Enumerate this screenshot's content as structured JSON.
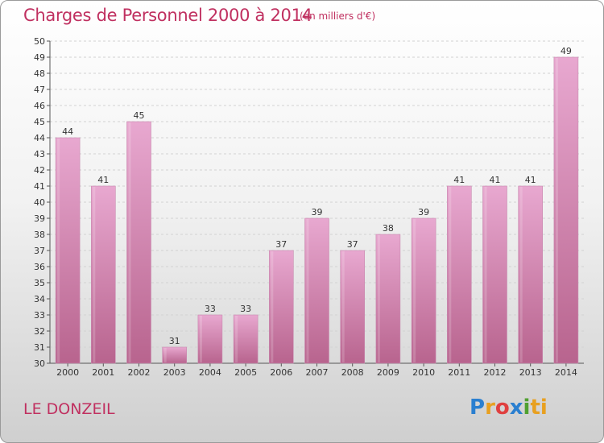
{
  "header": {
    "title": "Charges de Personnel 2000 à 2014",
    "subtitle": "(en milliers d'€)"
  },
  "footer": {
    "place": "LE DONZEIL",
    "logo": [
      "P",
      "r",
      "o",
      "x",
      "i",
      "ti"
    ]
  },
  "colors": {
    "bar_top": "#e8a8d0",
    "bar_bottom": "#b8648e",
    "accent": "#c03060"
  },
  "chart_data": {
    "type": "bar",
    "title": "Charges de Personnel 2000 à 2014",
    "subtitle": "(en milliers d'€)",
    "categories": [
      "2000",
      "2001",
      "2002",
      "2003",
      "2004",
      "2005",
      "2006",
      "2007",
      "2008",
      "2009",
      "2010",
      "2011",
      "2012",
      "2013",
      "2014"
    ],
    "values": [
      44,
      41,
      45,
      31,
      33,
      33,
      37,
      39,
      37,
      38,
      39,
      41,
      41,
      41,
      49
    ],
    "ylim": [
      30,
      50
    ],
    "yticks": [
      30,
      31,
      32,
      33,
      34,
      35,
      36,
      37,
      38,
      39,
      40,
      41,
      42,
      43,
      44,
      45,
      46,
      47,
      48,
      49,
      50
    ],
    "grid": true,
    "xlabel": "",
    "ylabel": ""
  }
}
